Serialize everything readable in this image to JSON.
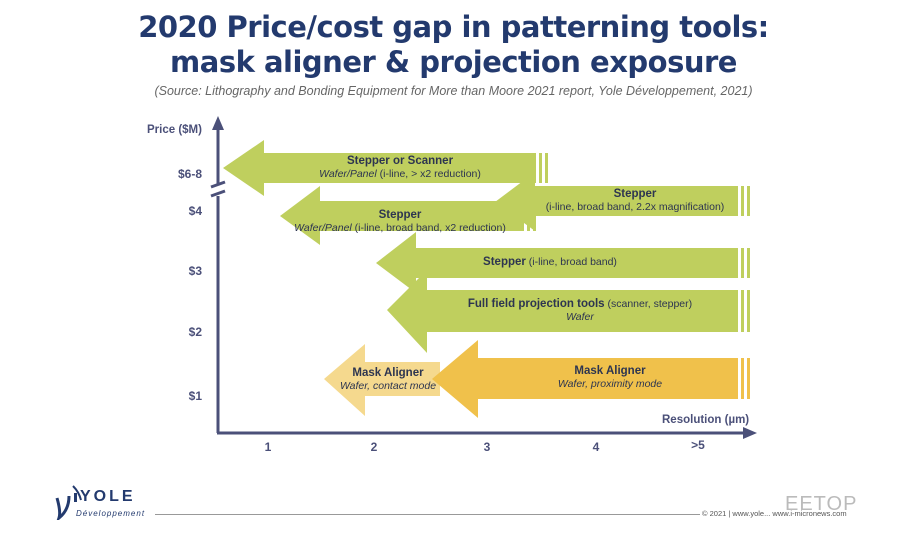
{
  "header": {
    "title_line1": "2020 Price/cost gap in patterning tools:",
    "title_line2": "mask aligner & projection exposure",
    "source": "(Source: Lithography and Bonding Equipment for More than Moore 2021 report, Yole Développement, 2021)"
  },
  "axes": {
    "y_title": "Price ($M)",
    "y_ticks": [
      "$6-8",
      "$4",
      "$3",
      "$2",
      "$1"
    ],
    "x_title": "Resolution (µm)",
    "x_ticks": [
      "1",
      "2",
      "3",
      "4",
      ">5"
    ]
  },
  "arrows": [
    {
      "id": "stepper-or-scanner",
      "title": "Stepper or Scanner",
      "sub_italic": "Wafer/Panel",
      "sub_plain": " (i-line, > x2 reduction)",
      "color": "#bfcf5e"
    },
    {
      "id": "stepper-magnification",
      "title": "Stepper",
      "sub_italic": "",
      "sub_plain": "(i-line, broad band, 2.2x magnification)",
      "color": "#bfcf5e"
    },
    {
      "id": "stepper-wafer-panel",
      "title": "Stepper",
      "sub_italic": "Wafer/Panel",
      "sub_plain": " (i-line, broad band, x2 reduction)",
      "color": "#bfcf5e"
    },
    {
      "id": "stepper-broadband",
      "title": "Stepper",
      "sub_plain": " (i-line, broad band)",
      "color": "#bfcf5e"
    },
    {
      "id": "full-field",
      "title": "Full field projection tools",
      "title_suffix": " (scanner, stepper)",
      "sub_italic": "Wafer",
      "color": "#bfcf5e"
    },
    {
      "id": "mask-aligner-contact",
      "title": "Mask Aligner",
      "sub_italic": "Wafer, contact mode",
      "color": "#f5d98e"
    },
    {
      "id": "mask-aligner-proximity",
      "title": "Mask Aligner",
      "sub_italic": "Wafer, proximity mode",
      "color": "#f0c14b"
    }
  ],
  "footer": {
    "logo_name": "YOLE",
    "logo_sub": "Développement",
    "copyright": "© 2021 | www.yole... www.i-micronews.com",
    "watermark": "EETOP"
  },
  "colors": {
    "navy": "#233a6e",
    "axis": "#4b5079",
    "green": "#bfcf5e",
    "light_orange": "#f5d98e",
    "orange": "#f0c14b"
  }
}
